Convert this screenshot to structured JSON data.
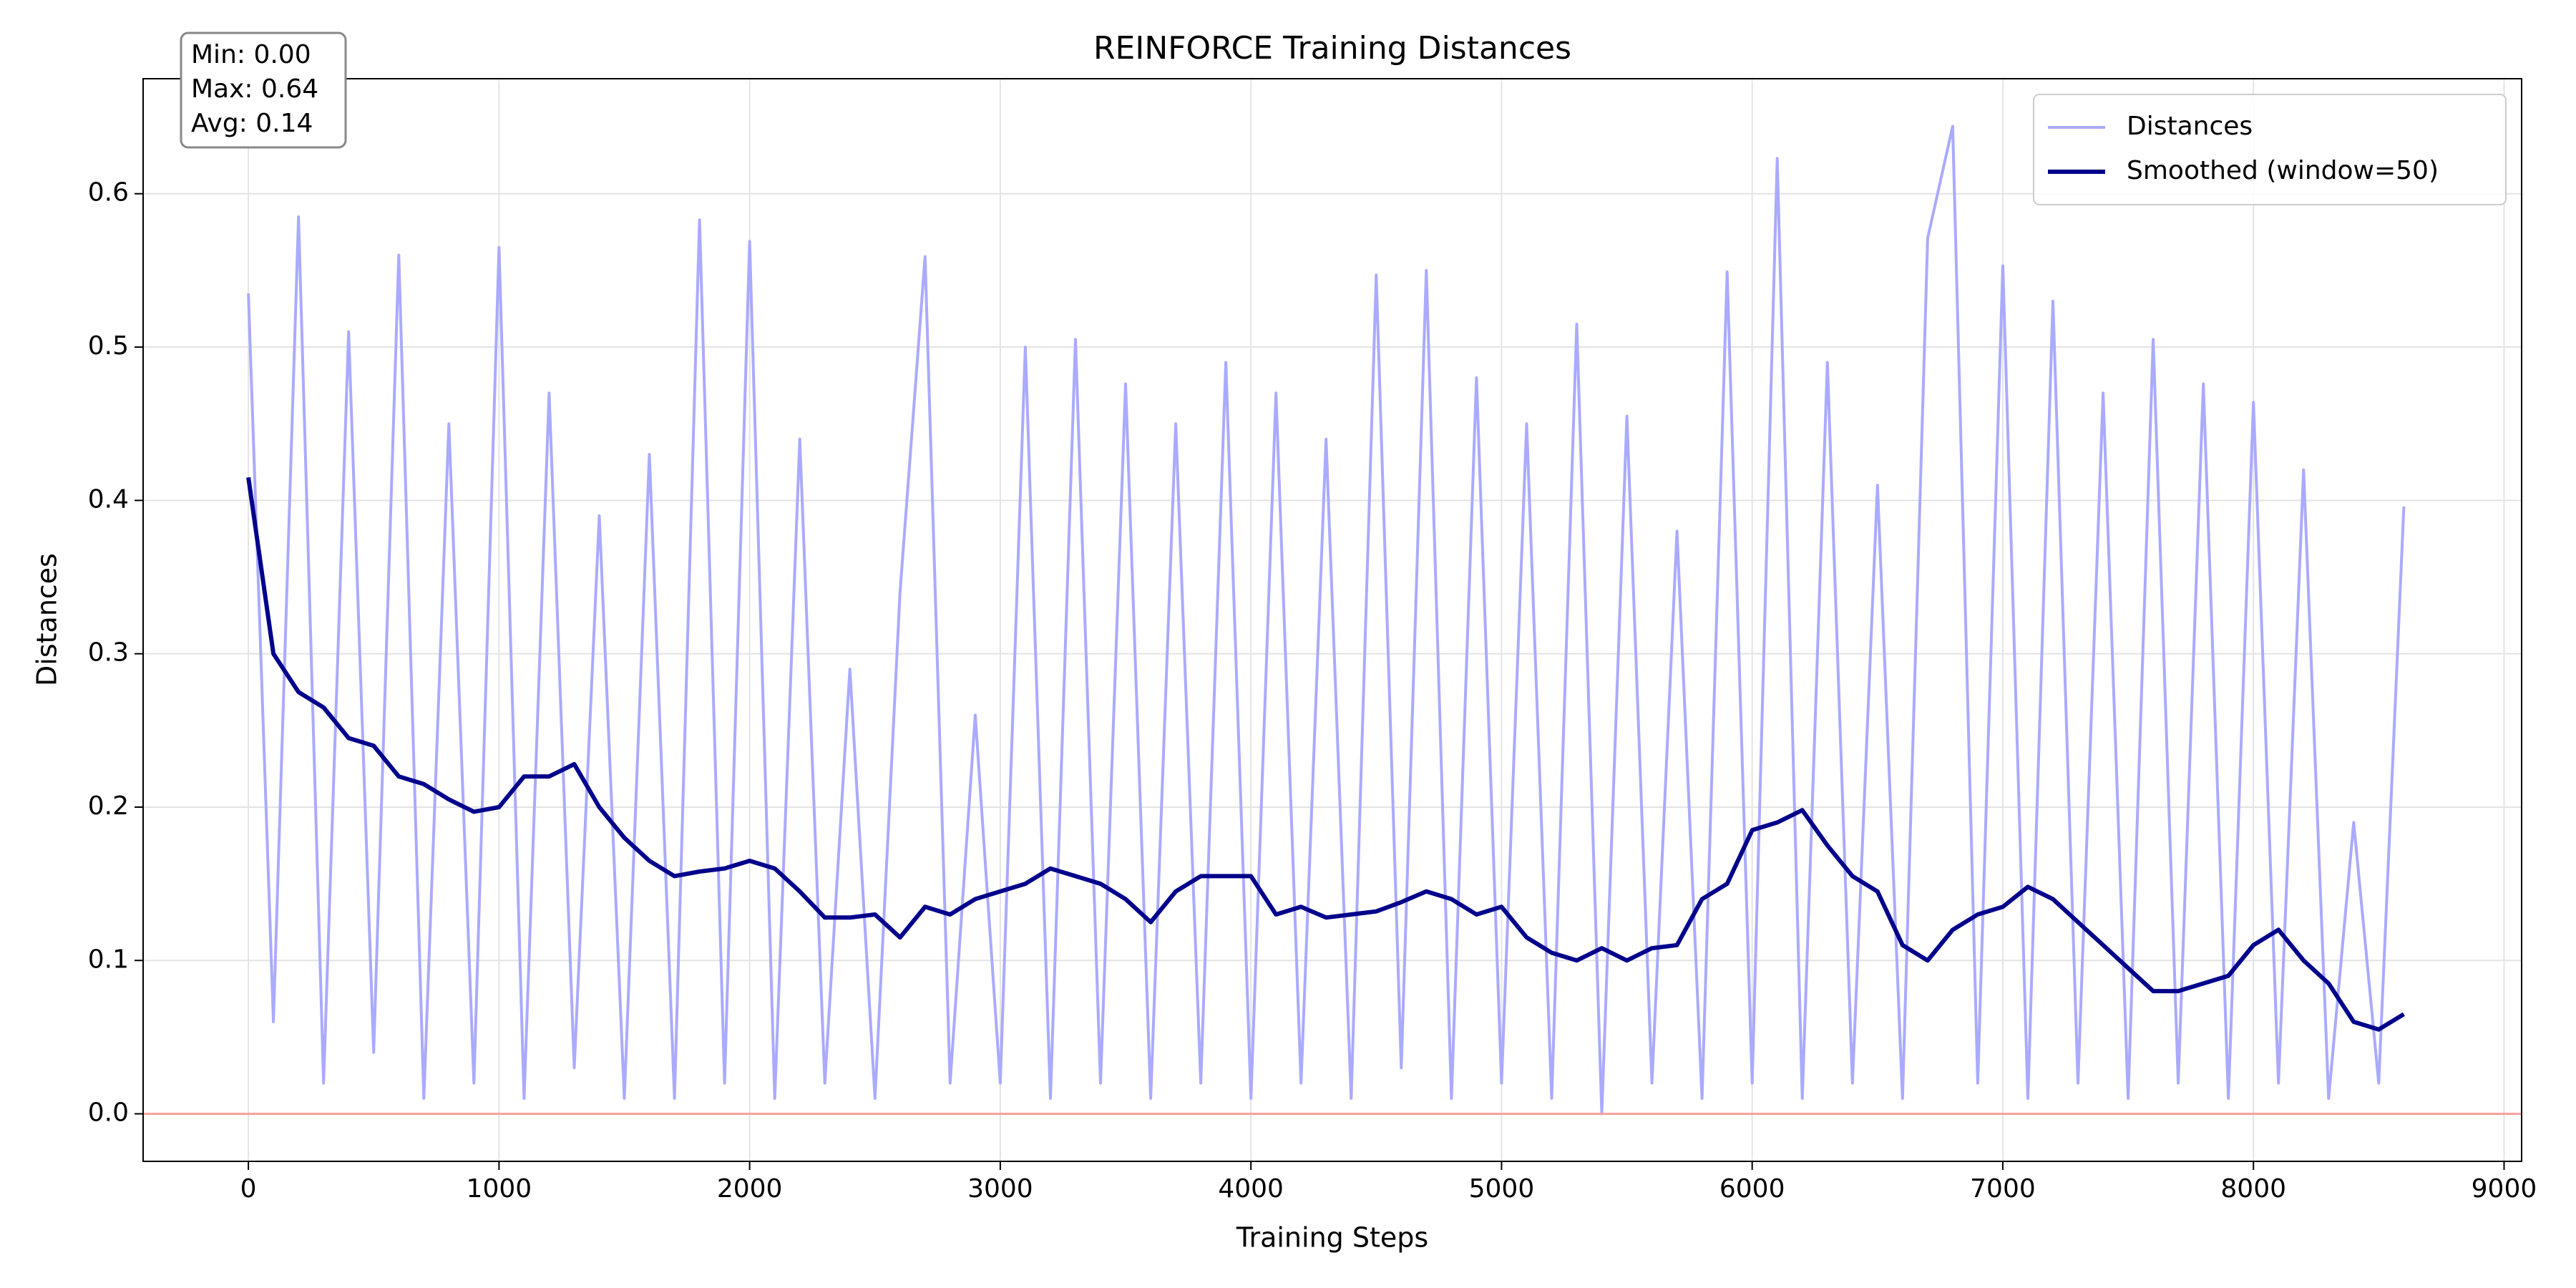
{
  "chart_data": {
    "type": "line",
    "title": "REINFORCE Training Distances",
    "x_label": "Training Steps",
    "y_label": "Distances",
    "x": [
      0,
      100,
      200,
      300,
      400,
      500,
      600,
      700,
      800,
      900,
      1000,
      1100,
      1200,
      1300,
      1400,
      1500,
      1600,
      1700,
      1800,
      1900,
      2000,
      2100,
      2200,
      2300,
      2400,
      2500,
      2600,
      2700,
      2800,
      2900,
      3000,
      3100,
      3200,
      3300,
      3400,
      3500,
      3600,
      3700,
      3800,
      3900,
      4000,
      4100,
      4200,
      4300,
      4400,
      4500,
      4600,
      4700,
      4800,
      4900,
      5000,
      5100,
      5200,
      5300,
      5400,
      5500,
      5600,
      5700,
      5800,
      5900,
      6000,
      6100,
      6200,
      6300,
      6400,
      6500,
      6600,
      6700,
      6800,
      6900,
      7000,
      7100,
      7200,
      7300,
      7400,
      7500,
      7600,
      7700,
      7800,
      7900,
      8000,
      8100,
      8200,
      8300,
      8400,
      8500,
      8600
    ],
    "series": [
      {
        "name": "Distances",
        "color": "#aaaaff",
        "width": 4,
        "values": [
          0.535,
          0.06,
          0.585,
          0.02,
          0.51,
          0.04,
          0.56,
          0.01,
          0.45,
          0.02,
          0.565,
          0.01,
          0.47,
          0.03,
          0.39,
          0.01,
          0.43,
          0.01,
          0.583,
          0.02,
          0.569,
          0.01,
          0.44,
          0.02,
          0.29,
          0.01,
          0.34,
          0.559,
          0.02,
          0.26,
          0.02,
          0.5,
          0.01,
          0.505,
          0.02,
          0.476,
          0.01,
          0.45,
          0.02,
          0.49,
          0.01,
          0.47,
          0.02,
          0.44,
          0.01,
          0.547,
          0.03,
          0.55,
          0.01,
          0.48,
          0.02,
          0.45,
          0.01,
          0.515,
          0.0,
          0.455,
          0.02,
          0.38,
          0.01,
          0.549,
          0.02,
          0.623,
          0.01,
          0.49,
          0.02,
          0.41,
          0.01,
          0.571,
          0.644,
          0.02,
          0.553,
          0.01,
          0.53,
          0.02,
          0.47,
          0.01,
          0.505,
          0.02,
          0.476,
          0.01,
          0.464,
          0.02,
          0.42,
          0.01,
          0.19,
          0.02,
          0.396
        ]
      },
      {
        "name": "Smoothed (window=50)",
        "color": "#00008b",
        "width": 6,
        "values": [
          0.415,
          0.3,
          0.275,
          0.265,
          0.245,
          0.24,
          0.22,
          0.215,
          0.205,
          0.197,
          0.2,
          0.22,
          0.22,
          0.228,
          0.2,
          0.18,
          0.165,
          0.155,
          0.158,
          0.16,
          0.165,
          0.16,
          0.145,
          0.128,
          0.128,
          0.13,
          0.115,
          0.135,
          0.13,
          0.14,
          0.145,
          0.15,
          0.16,
          0.155,
          0.15,
          0.14,
          0.125,
          0.145,
          0.155,
          0.155,
          0.155,
          0.13,
          0.135,
          0.128,
          0.13,
          0.132,
          0.138,
          0.145,
          0.14,
          0.13,
          0.135,
          0.115,
          0.105,
          0.1,
          0.108,
          0.1,
          0.108,
          0.11,
          0.14,
          0.15,
          0.185,
          0.19,
          0.198,
          0.175,
          0.155,
          0.145,
          0.11,
          0.1,
          0.12,
          0.13,
          0.135,
          0.148,
          0.14,
          0.125,
          0.11,
          0.095,
          0.08,
          0.08,
          0.085,
          0.09,
          0.11,
          0.12,
          0.1,
          0.085,
          0.06,
          0.055,
          0.065
        ]
      }
    ],
    "hline": {
      "value": 0,
      "color": "#f4a09a"
    },
    "annotation": [
      "Min: 0.00",
      "Max: 0.64",
      "Avg: 0.14"
    ],
    "xlim": [
      -420,
      9070
    ],
    "ylim": [
      -0.031,
      0.675
    ],
    "xticks": [
      0,
      1000,
      2000,
      3000,
      4000,
      5000,
      6000,
      7000,
      8000,
      9000
    ],
    "yticks": [
      {
        "value": 0,
        "label": "0.0"
      },
      {
        "value": 0.1,
        "label": "0.1"
      },
      {
        "value": 0.2,
        "label": "0.2"
      },
      {
        "value": 0.3,
        "label": "0.3"
      },
      {
        "value": 0.4,
        "label": "0.4"
      },
      {
        "value": 0.5,
        "label": "0.5"
      },
      {
        "value": 0.6,
        "label": "0.6"
      }
    ],
    "grid": true,
    "legend": "upper right"
  }
}
